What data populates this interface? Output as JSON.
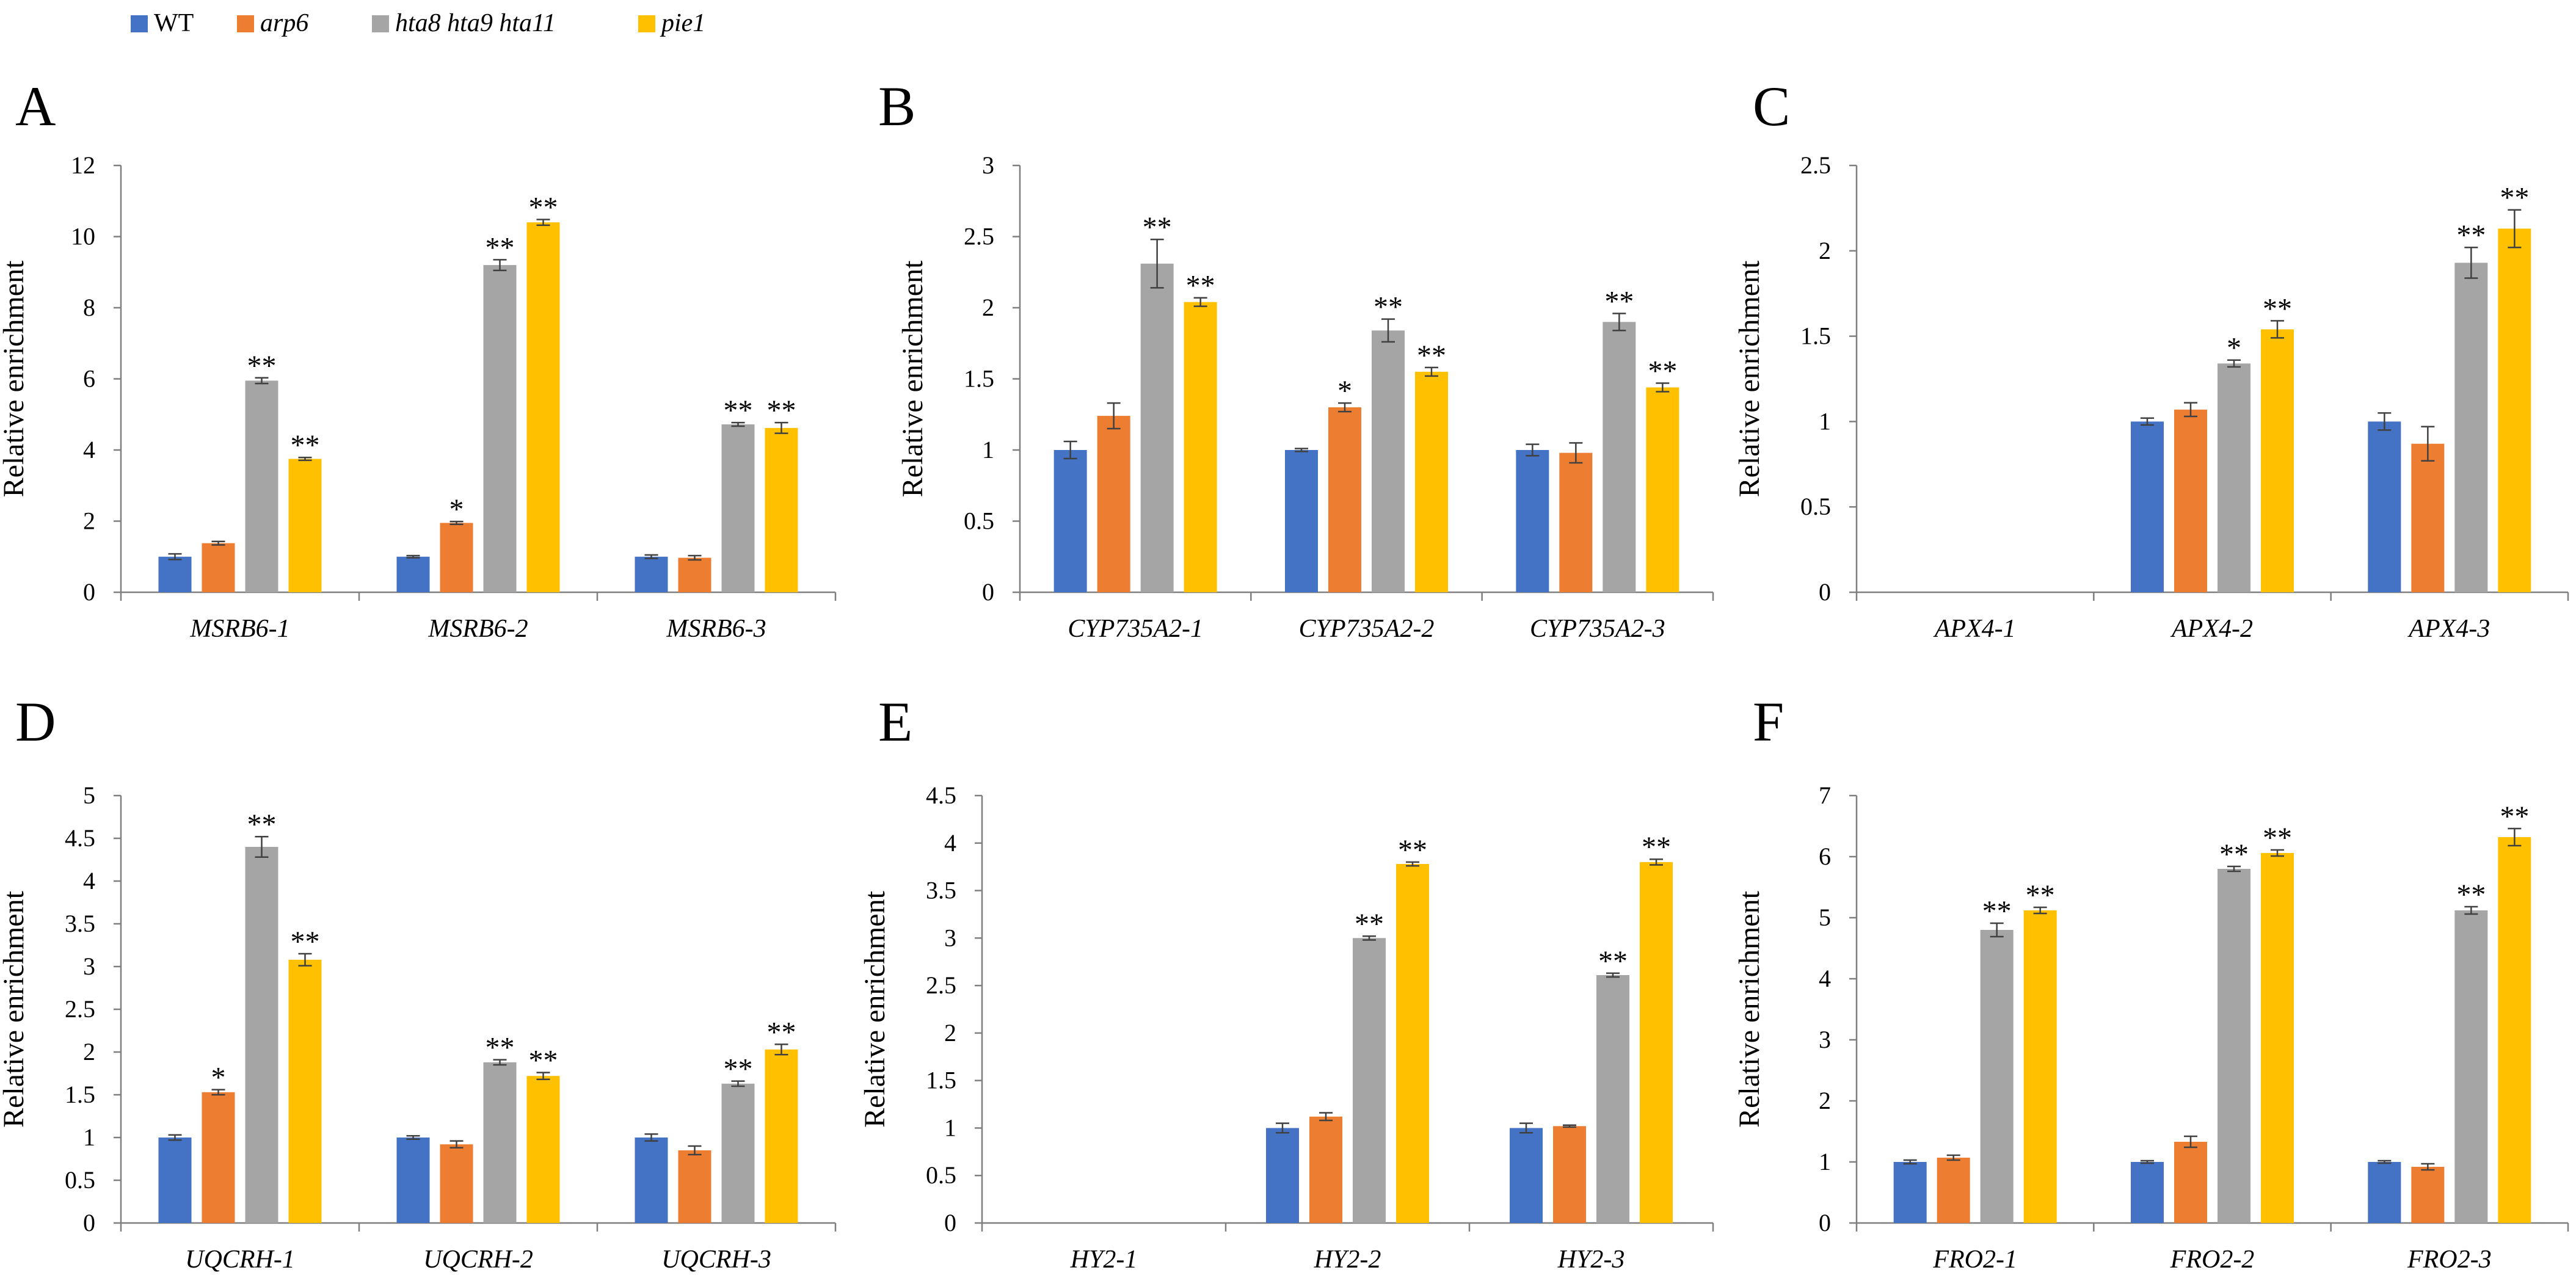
{
  "legend": {
    "items": [
      {
        "label": "WT",
        "color": "#4472C4",
        "italic": false
      },
      {
        "label": "arp6",
        "color": "#ED7D31",
        "italic": true
      },
      {
        "label": "hta8 hta9 hta11",
        "color": "#A5A5A5",
        "italic": true
      },
      {
        "label": "pie1",
        "color": "#FFC000",
        "italic": true
      }
    ]
  },
  "chart_data": [
    {
      "panel": "A",
      "type": "bar",
      "ylabel": "Relative enrichment",
      "ylim": [
        0,
        12
      ],
      "yticks": [
        "0",
        "2",
        "4",
        "6",
        "8",
        "10",
        "12"
      ],
      "ystep": 2,
      "categories": [
        "MSRB6-1",
        "MSRB6-2",
        "MSRB6-3"
      ],
      "series": [
        {
          "name": "WT",
          "values": [
            1.0,
            1.0,
            1.0
          ],
          "errors": [
            0.08,
            0.03,
            0.05
          ],
          "sig": [
            "",
            "",
            ""
          ]
        },
        {
          "name": "arp6",
          "values": [
            1.38,
            1.95,
            0.97
          ],
          "errors": [
            0.05,
            0.04,
            0.06
          ],
          "sig": [
            "",
            "*",
            ""
          ]
        },
        {
          "name": "hta8 hta9 hta11",
          "values": [
            5.95,
            9.2,
            4.72
          ],
          "errors": [
            0.08,
            0.15,
            0.05
          ],
          "sig": [
            "**",
            "**",
            "**"
          ]
        },
        {
          "name": "pie1",
          "values": [
            3.75,
            10.4,
            4.62
          ],
          "errors": [
            0.04,
            0.08,
            0.15
          ],
          "sig": [
            "**",
            "**",
            "**"
          ]
        }
      ]
    },
    {
      "panel": "B",
      "type": "bar",
      "ylabel": "Relative enrichment",
      "ylim": [
        0,
        3
      ],
      "yticks": [
        "0",
        "0.5",
        "1",
        "1.5",
        "2",
        "2.5",
        "3"
      ],
      "ystep": 0.5,
      "categories": [
        "CYP735A2-1",
        "CYP735A2-2",
        "CYP735A2-3"
      ],
      "series": [
        {
          "name": "WT",
          "values": [
            1.0,
            1.0,
            1.0
          ],
          "errors": [
            0.06,
            0.01,
            0.04
          ],
          "sig": [
            "",
            "",
            ""
          ]
        },
        {
          "name": "arp6",
          "values": [
            1.24,
            1.3,
            0.98
          ],
          "errors": [
            0.09,
            0.03,
            0.07
          ],
          "sig": [
            "",
            "*",
            ""
          ]
        },
        {
          "name": "hta8 hta9 hta11",
          "values": [
            2.31,
            1.84,
            1.9
          ],
          "errors": [
            0.17,
            0.08,
            0.06
          ],
          "sig": [
            "**",
            "**",
            "**"
          ]
        },
        {
          "name": "pie1",
          "values": [
            2.04,
            1.55,
            1.44
          ],
          "errors": [
            0.03,
            0.03,
            0.03
          ],
          "sig": [
            "**",
            "**",
            "**"
          ]
        }
      ]
    },
    {
      "panel": "C",
      "type": "bar",
      "ylabel": "Relative enrichment",
      "ylim": [
        0,
        2.5
      ],
      "yticks": [
        "0",
        "0.5",
        "1",
        "1.5",
        "2",
        "2.5"
      ],
      "ystep": 0.5,
      "categories": [
        "APX4-1",
        "APX4-2",
        "APX4-3"
      ],
      "series": [
        {
          "name": "WT",
          "values": [
            null,
            1.0,
            1.0
          ],
          "errors": [
            0,
            0.02,
            0.05
          ],
          "sig": [
            "",
            "",
            ""
          ]
        },
        {
          "name": "arp6",
          "values": [
            null,
            1.07,
            0.87
          ],
          "errors": [
            0,
            0.04,
            0.1
          ],
          "sig": [
            "",
            "",
            ""
          ]
        },
        {
          "name": "hta8 hta9 hta11",
          "values": [
            null,
            1.34,
            1.93
          ],
          "errors": [
            0,
            0.02,
            0.09
          ],
          "sig": [
            "",
            "*",
            "**"
          ]
        },
        {
          "name": "pie1",
          "values": [
            null,
            1.54,
            2.13
          ],
          "errors": [
            0,
            0.05,
            0.11
          ],
          "sig": [
            "",
            "**",
            "**"
          ]
        }
      ]
    },
    {
      "panel": "D",
      "type": "bar",
      "ylabel": "Relative enrichment",
      "ylim": [
        0,
        5
      ],
      "yticks": [
        "0",
        "0.5",
        "1",
        "1.5",
        "2",
        "2.5",
        "3",
        "3.5",
        "4",
        "4.5",
        "5"
      ],
      "ystep": 0.5,
      "categories": [
        "UQCRH-1",
        "UQCRH-2",
        "UQCRH-3"
      ],
      "series": [
        {
          "name": "WT",
          "values": [
            1.0,
            1.0,
            1.0
          ],
          "errors": [
            0.03,
            0.02,
            0.04
          ],
          "sig": [
            "",
            "",
            ""
          ]
        },
        {
          "name": "arp6",
          "values": [
            1.53,
            0.92,
            0.85
          ],
          "errors": [
            0.03,
            0.04,
            0.05
          ],
          "sig": [
            "*",
            "",
            ""
          ]
        },
        {
          "name": "hta8 hta9 hta11",
          "values": [
            4.4,
            1.88,
            1.63
          ],
          "errors": [
            0.12,
            0.03,
            0.03
          ],
          "sig": [
            "**",
            "**",
            "**"
          ]
        },
        {
          "name": "pie1",
          "values": [
            3.08,
            1.72,
            2.03
          ],
          "errors": [
            0.07,
            0.04,
            0.06
          ],
          "sig": [
            "**",
            "**",
            "**"
          ]
        }
      ]
    },
    {
      "panel": "E",
      "type": "bar",
      "ylabel": "Relative enrichment",
      "ylim": [
        0,
        4.5
      ],
      "yticks": [
        "0",
        "0.5",
        "1",
        "1.5",
        "2",
        "2.5",
        "3",
        "3.5",
        "4",
        "4.5"
      ],
      "ystep": 0.5,
      "categories": [
        "HY2-1",
        "HY2-2",
        "HY2-3"
      ],
      "series": [
        {
          "name": "WT",
          "values": [
            null,
            1.0,
            1.0
          ],
          "errors": [
            0,
            0.05,
            0.05
          ],
          "sig": [
            "",
            "",
            ""
          ]
        },
        {
          "name": "arp6",
          "values": [
            null,
            1.12,
            1.02
          ],
          "errors": [
            0,
            0.04,
            0.01
          ],
          "sig": [
            "",
            "",
            ""
          ]
        },
        {
          "name": "hta8 hta9 hta11",
          "values": [
            null,
            3.0,
            2.61
          ],
          "errors": [
            0,
            0.02,
            0.02
          ],
          "sig": [
            "",
            "**",
            "**"
          ]
        },
        {
          "name": "pie1",
          "values": [
            null,
            3.78,
            3.8
          ],
          "errors": [
            0,
            0.02,
            0.03
          ],
          "sig": [
            "",
            "**",
            "**"
          ]
        }
      ]
    },
    {
      "panel": "F",
      "type": "bar",
      "ylabel": "Relative enrichment",
      "ylim": [
        0,
        7
      ],
      "yticks": [
        "0",
        "1",
        "2",
        "3",
        "4",
        "5",
        "6",
        "7"
      ],
      "ystep": 1,
      "categories": [
        "FRO2-1",
        "FRO2-2",
        "FRO2-3"
      ],
      "series": [
        {
          "name": "WT",
          "values": [
            1.0,
            1.0,
            1.0
          ],
          "errors": [
            0.03,
            0.02,
            0.02
          ],
          "sig": [
            "",
            "",
            ""
          ]
        },
        {
          "name": "arp6",
          "values": [
            1.07,
            1.33,
            0.92
          ],
          "errors": [
            0.04,
            0.09,
            0.05
          ],
          "sig": [
            "",
            "",
            ""
          ]
        },
        {
          "name": "hta8 hta9 hta11",
          "values": [
            4.8,
            5.8,
            5.12
          ],
          "errors": [
            0.11,
            0.04,
            0.06
          ],
          "sig": [
            "**",
            "**",
            "**"
          ]
        },
        {
          "name": "pie1",
          "values": [
            5.12,
            6.06,
            6.32
          ],
          "errors": [
            0.05,
            0.05,
            0.14
          ],
          "sig": [
            "**",
            "**",
            "**"
          ]
        }
      ]
    }
  ]
}
